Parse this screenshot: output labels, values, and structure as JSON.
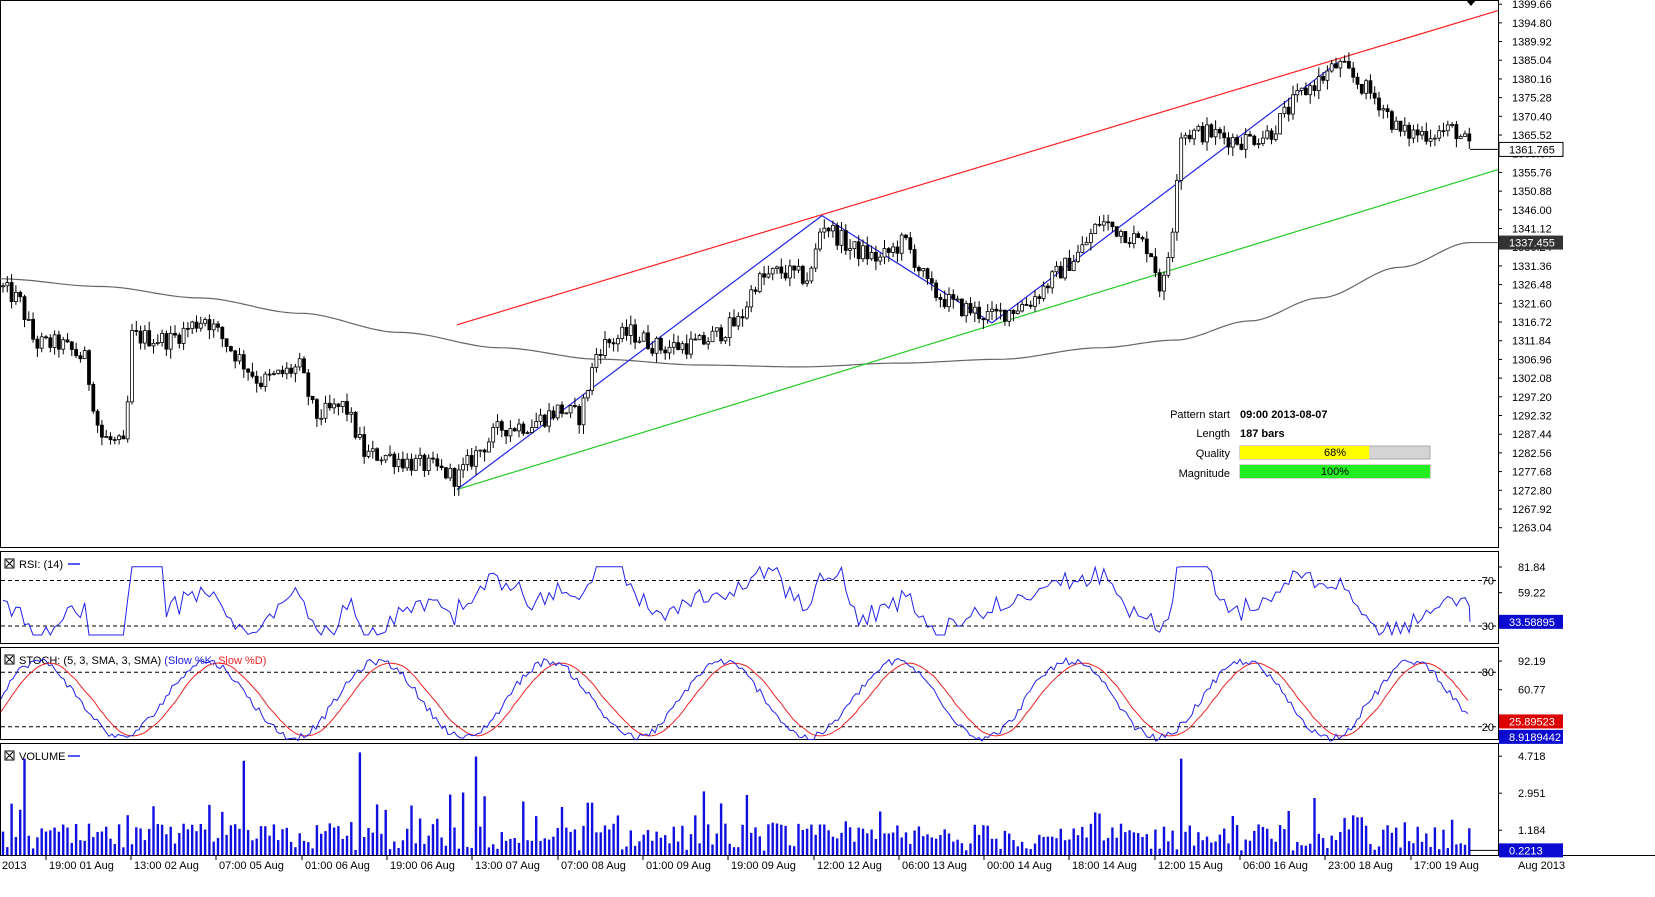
{
  "chart_data": {
    "type": "candlestick",
    "instrument_header": "2013",
    "main": {
      "y_ticks": [
        "1399.66",
        "1394.80",
        "1389.92",
        "1385.04",
        "1380.16",
        "1375.28",
        "1370.40",
        "1365.52",
        "1360.64",
        "1355.76",
        "1350.88",
        "1346.00",
        "1341.12",
        "1336.24",
        "1331.36",
        "1326.48",
        "1321.60",
        "1316.72",
        "1311.84",
        "1306.96",
        "1302.08",
        "1297.20",
        "1292.32",
        "1287.44",
        "1282.56",
        "1277.68",
        "1272.80",
        "1267.92",
        "1263.04"
      ],
      "ylim": [
        1258.0,
        1400.5
      ],
      "last_price_label": "1361.765",
      "last_price": 1361.765,
      "ma_label": "1337.455",
      "ma_value": 1337.455,
      "pattern": {
        "upper_line_start": [
          457,
          1316.0
        ],
        "upper_line_end": [
          1498,
          1398.0
        ],
        "lower_line_start": [
          457,
          1273.0
        ],
        "lower_line_end": [
          1498,
          1356.5
        ],
        "zigzag": [
          [
            457,
            1273.0
          ],
          [
            822,
            1344.5
          ],
          [
            992,
            1316.5
          ],
          [
            1338,
            1384.5
          ]
        ]
      },
      "info": {
        "pattern_start_label": "Pattern start",
        "pattern_start_value": "09:00 2013-08-07",
        "length_label": "Length",
        "length_value": "187 bars",
        "quality_label": "Quality",
        "quality_value": "68%",
        "quality_fraction": 0.68,
        "magnitude_label": "Magnitude",
        "magnitude_value": "100%",
        "magnitude_fraction": 1.0
      }
    },
    "rsi": {
      "title": "RSI: (14)",
      "y_ticks": [
        "81.84",
        "59.22"
      ],
      "level_high": "70",
      "level_low": "30",
      "last_label": "33.58895"
    },
    "stoch": {
      "title_prefix": "STOCH: (5, 3, SMA, 3, SMA)",
      "slow_k": "(Slow %K,",
      "slow_d": "Slow %D)",
      "y_ticks": [
        "92.19",
        "60.77"
      ],
      "level_high": "80",
      "level_low": "20",
      "last_d_label": "25.89523",
      "last_k_label": "8.9189442"
    },
    "volume": {
      "title": "VOLUME",
      "y_ticks": [
        "4.718",
        "2.951",
        "1.184"
      ],
      "last_label": "0.2213"
    },
    "x_labels": [
      {
        "text": "2013",
        "x": 2
      },
      {
        "text": "19:00 01 Aug",
        "x": 49
      },
      {
        "text": "13:00 02 Aug",
        "x": 134
      },
      {
        "text": "07:00 05 Aug",
        "x": 219
      },
      {
        "text": "01:00 06 Aug",
        "x": 305
      },
      {
        "text": "19:00 06 Aug",
        "x": 390
      },
      {
        "text": "13:00 07 Aug",
        "x": 475
      },
      {
        "text": "07:00 08 Aug",
        "x": 561
      },
      {
        "text": "01:00 09 Aug",
        "x": 646
      },
      {
        "text": "19:00 09 Aug",
        "x": 731
      },
      {
        "text": "12:00 12 Aug",
        "x": 817
      },
      {
        "text": "06:00 13 Aug",
        "x": 902
      },
      {
        "text": "00:00 14 Aug",
        "x": 987
      },
      {
        "text": "18:00 14 Aug",
        "x": 1072
      },
      {
        "text": "12:00 15 Aug",
        "x": 1158
      },
      {
        "text": "06:00 16 Aug",
        "x": 1243
      },
      {
        "text": "23:00 18 Aug",
        "x": 1328
      },
      {
        "text": "17:00 19 Aug",
        "x": 1414
      },
      {
        "text": "Aug 2013",
        "x": 1518
      }
    ],
    "price_anchors": [
      [
        0,
        1326
      ],
      [
        20,
        1322
      ],
      [
        35,
        1311
      ],
      [
        60,
        1311
      ],
      [
        85,
        1307
      ],
      [
        100,
        1287
      ],
      [
        125,
        1284
      ],
      [
        132,
        1313
      ],
      [
        170,
        1312
      ],
      [
        205,
        1318
      ],
      [
        230,
        1310
      ],
      [
        260,
        1301
      ],
      [
        300,
        1305
      ],
      [
        315,
        1292
      ],
      [
        345,
        1295
      ],
      [
        365,
        1282
      ],
      [
        385,
        1282
      ],
      [
        410,
        1280
      ],
      [
        430,
        1279
      ],
      [
        457,
        1276
      ],
      [
        475,
        1282
      ],
      [
        500,
        1289
      ],
      [
        530,
        1290
      ],
      [
        560,
        1294
      ],
      [
        580,
        1292
      ],
      [
        598,
        1310
      ],
      [
        630,
        1314
      ],
      [
        660,
        1310
      ],
      [
        700,
        1311
      ],
      [
        740,
        1317
      ],
      [
        755,
        1327
      ],
      [
        780,
        1330
      ],
      [
        810,
        1328
      ],
      [
        822,
        1343
      ],
      [
        850,
        1336
      ],
      [
        880,
        1333
      ],
      [
        905,
        1338
      ],
      [
        930,
        1325
      ],
      [
        955,
        1321
      ],
      [
        992,
        1318
      ],
      [
        1030,
        1322
      ],
      [
        1060,
        1330
      ],
      [
        1080,
        1335
      ],
      [
        1100,
        1343
      ],
      [
        1125,
        1340
      ],
      [
        1150,
        1336
      ],
      [
        1162,
        1324
      ],
      [
        1172,
        1340
      ],
      [
        1180,
        1366
      ],
      [
        1210,
        1366
      ],
      [
        1240,
        1364
      ],
      [
        1270,
        1366
      ],
      [
        1300,
        1376
      ],
      [
        1320,
        1380
      ],
      [
        1338,
        1384
      ],
      [
        1355,
        1380
      ],
      [
        1380,
        1374
      ],
      [
        1400,
        1366
      ],
      [
        1430,
        1366
      ],
      [
        1455,
        1367
      ],
      [
        1470,
        1362
      ]
    ]
  }
}
